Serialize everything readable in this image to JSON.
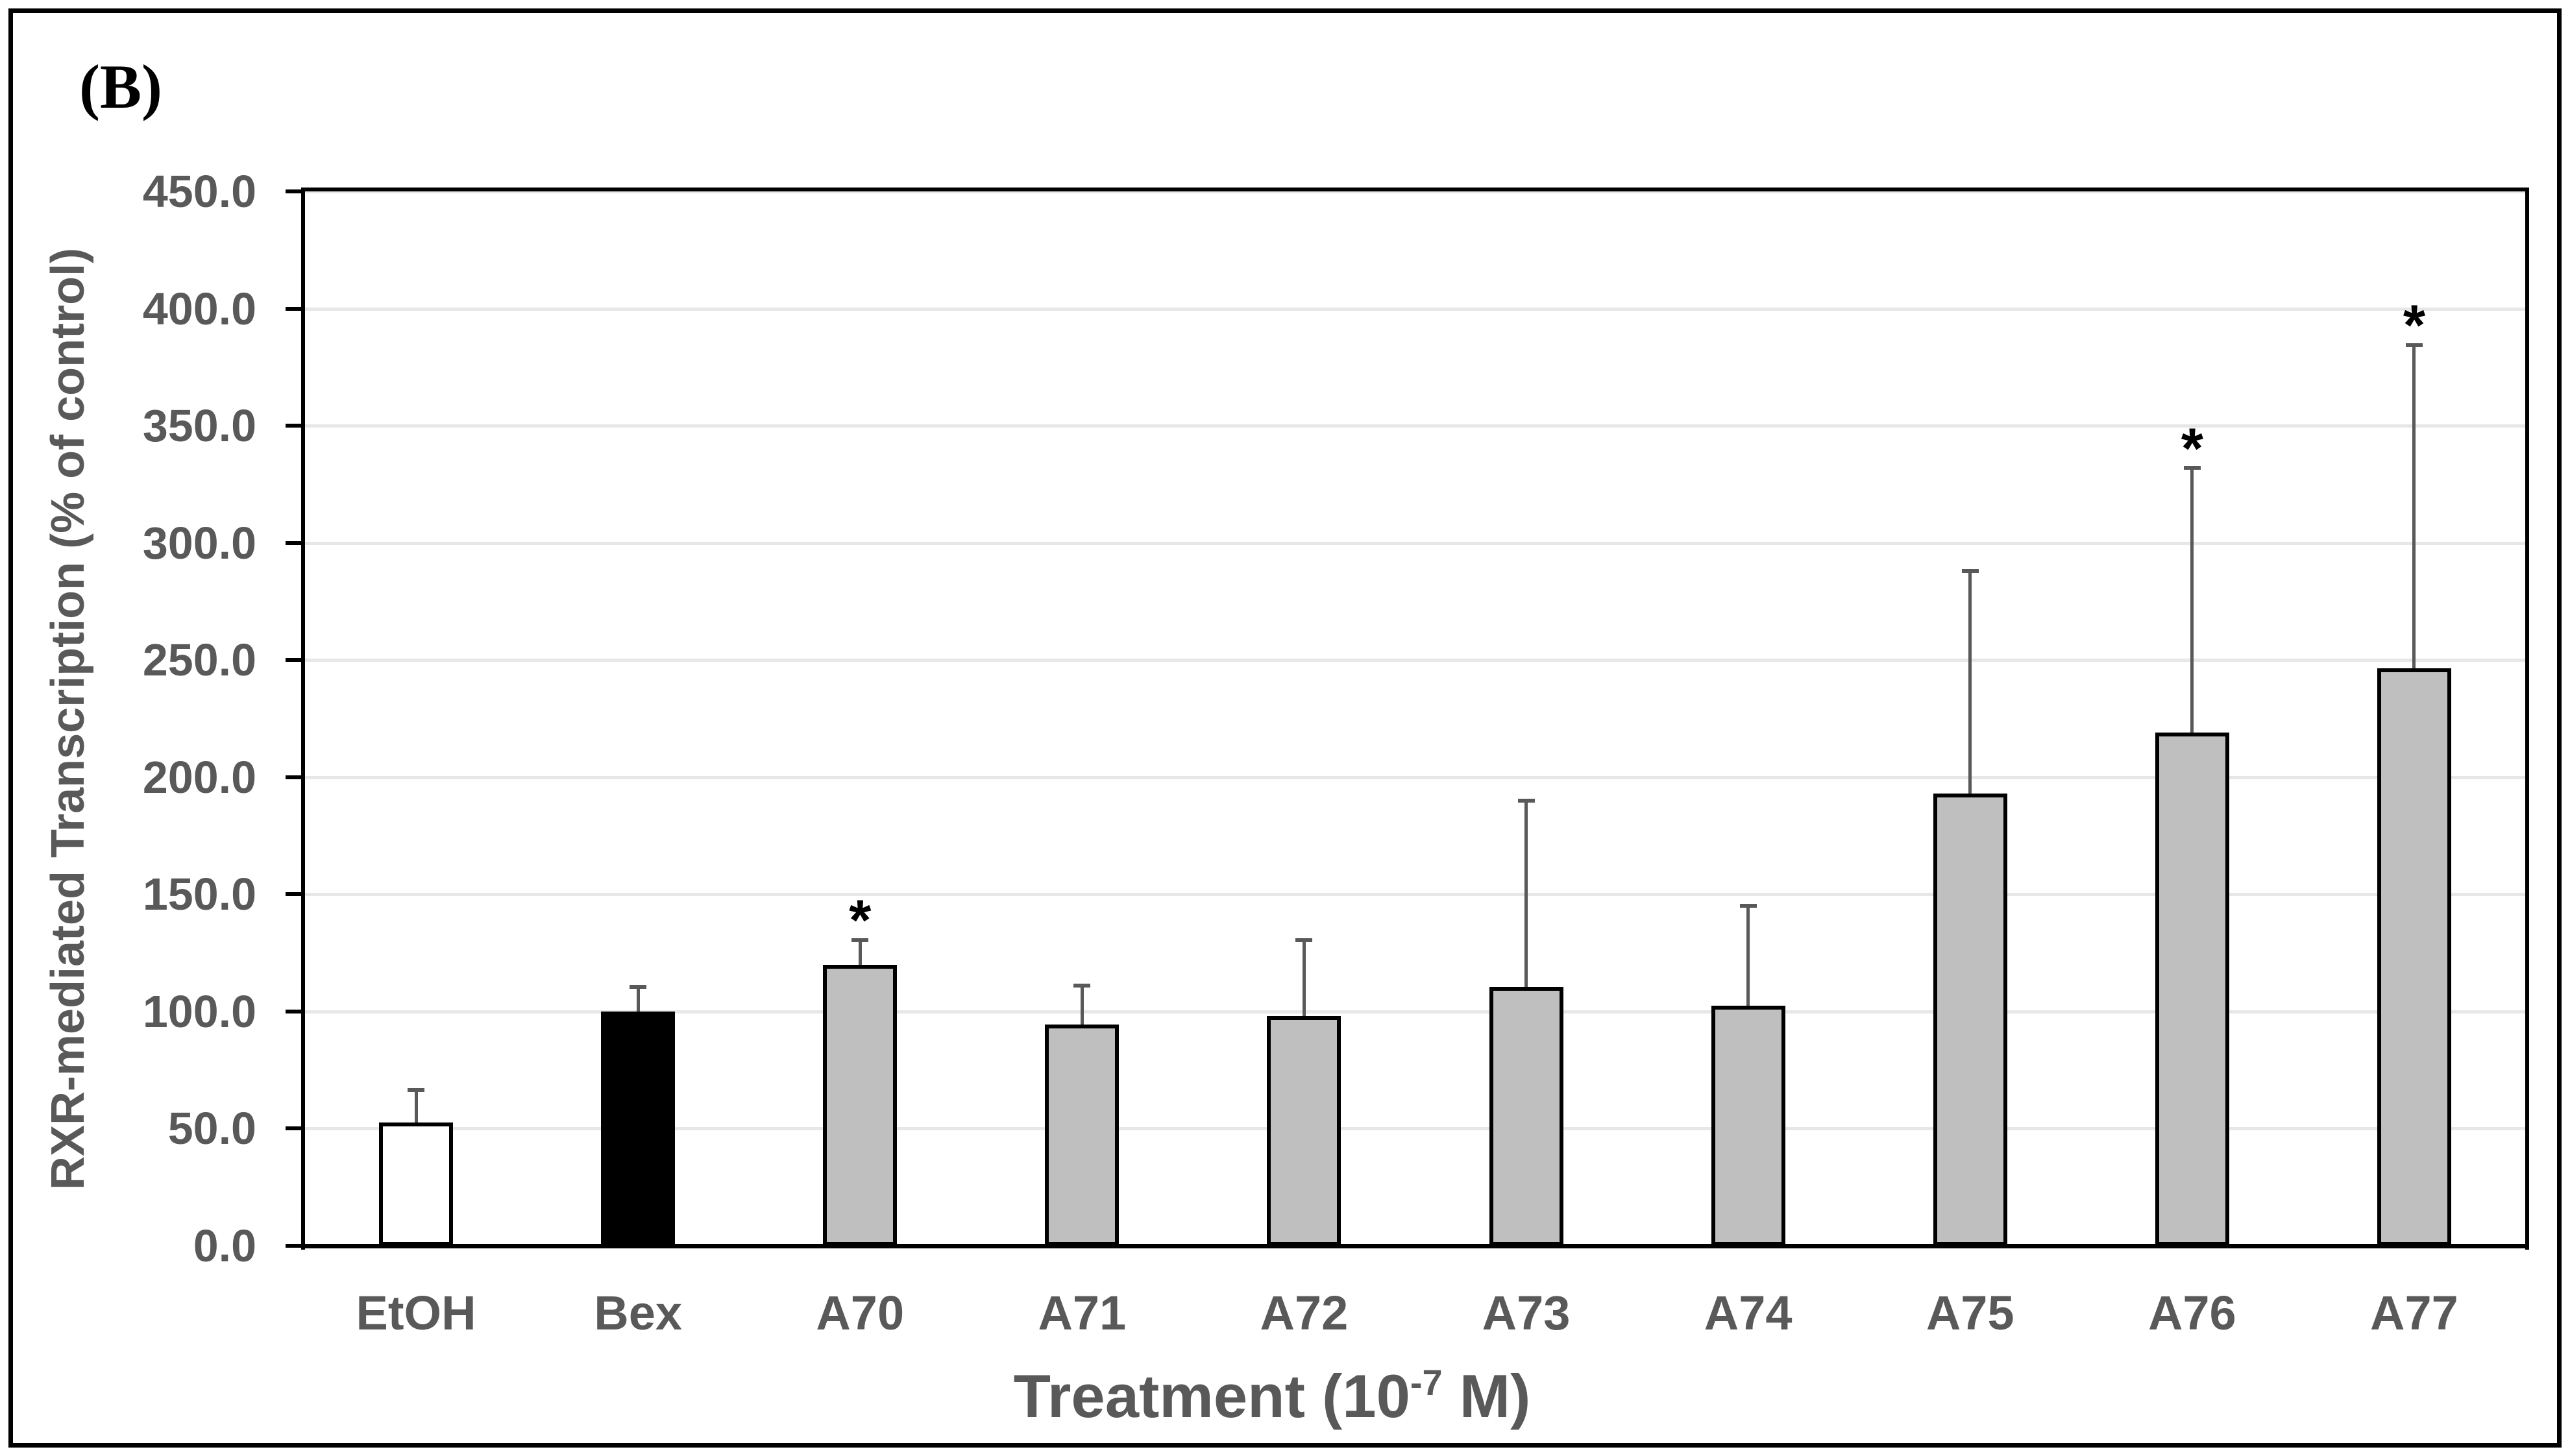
{
  "panel_label": "(B)",
  "colors": {
    "text_gray": "#595959",
    "gridline": "#E7E7E7",
    "axis_black": "#000000",
    "error_bar": "#595959",
    "bar_default_fill": "#BFBFBF",
    "bar_border": "#000000",
    "background": "#FFFFFF"
  },
  "significance_marker": "*",
  "axes": {
    "y_title": "RXR-mediated Transcription (% of control)",
    "x_title_prefix": "Treatment (10",
    "x_title_sup": "-7",
    "x_title_suffix": " M)",
    "y_tick_labels": [
      "0.0",
      "50.0",
      "100.0",
      "150.0",
      "200.0",
      "250.0",
      "300.0",
      "350.0",
      "400.0",
      "450.0"
    ]
  },
  "chart_data": {
    "type": "bar",
    "title": "",
    "xlabel": "Treatment (10^-7 M)",
    "ylabel": "RXR-mediated Transcription (% of control)",
    "ylim": [
      0,
      450
    ],
    "y_step": 50,
    "grid": true,
    "legend": false,
    "categories": [
      "EtOH",
      "Bex",
      "A70",
      "A71",
      "A72",
      "A73",
      "A74",
      "A75",
      "A76",
      "A77"
    ],
    "series": [
      {
        "name": "RXR-mediated transcription (% of control)",
        "values": [
          52.5,
          100.0,
          120.0,
          94.5,
          98.0,
          110.5,
          102.5,
          193.0,
          219.0,
          246.5
        ],
        "error_upper": [
          14.0,
          10.5,
          10.5,
          16.5,
          32.5,
          79.5,
          42.5,
          95.0,
          113.0,
          138.0
        ],
        "significant": [
          false,
          false,
          true,
          false,
          false,
          false,
          false,
          false,
          true,
          true
        ],
        "bar_fills": [
          "#FFFFFF",
          "#000000",
          "#BFBFBF",
          "#BFBFBF",
          "#BFBFBF",
          "#BFBFBF",
          "#BFBFBF",
          "#BFBFBF",
          "#BFBFBF",
          "#BFBFBF"
        ]
      }
    ]
  }
}
